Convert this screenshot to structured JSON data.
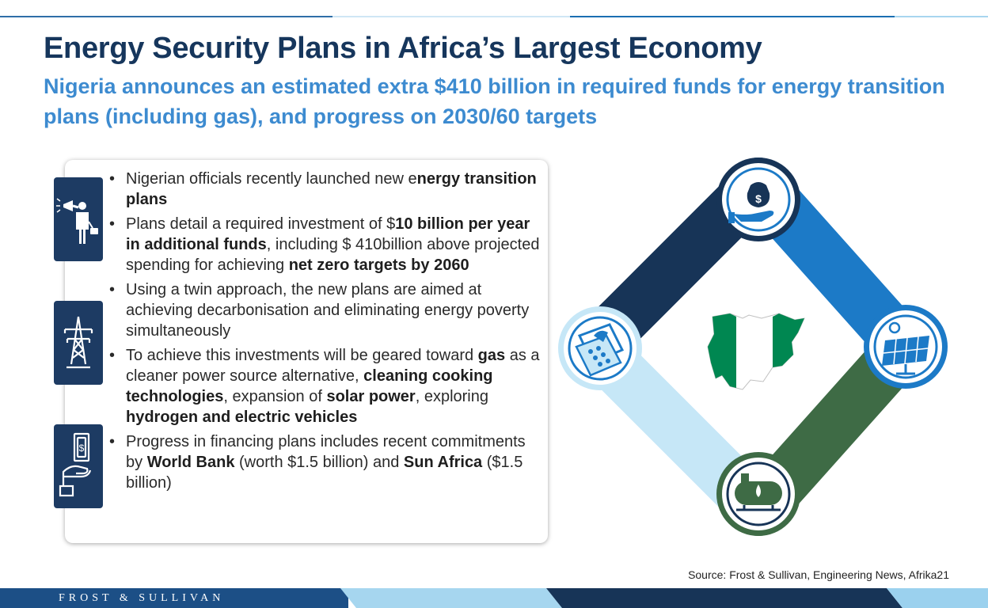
{
  "header": {
    "title": "Energy Security Plans in Africa’s Largest Economy",
    "subtitle": "Nigeria announces an estimated extra $410 billion in required funds for energy transition plans (including gas), and progress on 2030/60 targets"
  },
  "bullets": [
    [
      {
        "t": "Nigerian officials recently launched new e",
        "b": false
      },
      {
        "t": "nergy transition plans",
        "b": true
      }
    ],
    [
      {
        "t": "Plans detail a required investment of $",
        "b": false
      },
      {
        "t": "10 billion per year in additional funds",
        "b": true
      },
      {
        "t": ", including $ 410billion above projected spending for achieving ",
        "b": false
      },
      {
        "t": "net zero targets by 2060",
        "b": true
      }
    ],
    [
      {
        "t": "Using a twin approach, the new plans are aimed at achieving decarbonisation and eliminating energy poverty simultaneously",
        "b": false
      }
    ],
    [
      {
        "t": "To achieve this investments will be geared toward ",
        "b": false
      },
      {
        "t": "gas",
        "b": true
      },
      {
        "t": " as a cleaner power source alternative, ",
        "b": false
      },
      {
        "t": "cleaning cooking technologies",
        "b": true
      },
      {
        "t": ", expansion of ",
        "b": false
      },
      {
        "t": "solar power",
        "b": true
      },
      {
        "t": ", exploring ",
        "b": false
      },
      {
        "t": "hydrogen and electric vehicles",
        "b": true
      }
    ],
    [
      {
        "t": "Progress in financing plans includes recent commitments by ",
        "b": false
      },
      {
        "t": "World Bank",
        "b": true
      },
      {
        "t": " (worth $1.5 billion) and ",
        "b": false
      },
      {
        "t": "Sun Africa",
        "b": true
      },
      {
        "t": " ($1.5 billion)",
        "b": false
      }
    ]
  ],
  "icons": {
    "side_tabs": [
      "megaphone-businessman-icon",
      "power-pylon-icon",
      "hand-cash-icon"
    ],
    "diagram": [
      "money-bag-hand-icon",
      "solar-panel-icon",
      "gas-tank-icon",
      "cooking-stove-icon"
    ]
  },
  "colors": {
    "title": "#16365c",
    "subtitle": "#3d8bd0",
    "tab": "#1d3b63",
    "navy": "#173457",
    "blue": "#1c7ac7",
    "green": "#3e6b45",
    "light_blue": "#c6e7f7",
    "nigeria_green": "#008751"
  },
  "source": "Source: Frost & Sullivan, Engineering News, Afrika21",
  "footer": {
    "brand": "FROST & SULLIVAN"
  }
}
